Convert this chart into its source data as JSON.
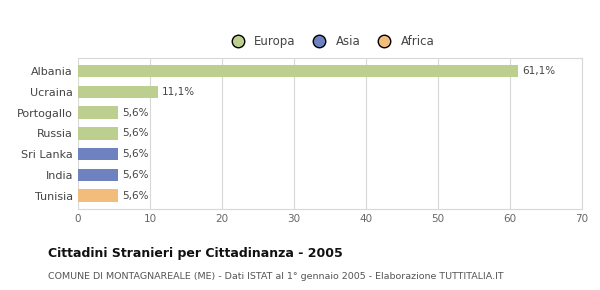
{
  "categories": [
    "Albania",
    "Ucraina",
    "Portogallo",
    "Russia",
    "Sri Lanka",
    "India",
    "Tunisia"
  ],
  "values": [
    61.1,
    11.1,
    5.6,
    5.6,
    5.6,
    5.6,
    5.6
  ],
  "labels": [
    "61,1%",
    "11,1%",
    "5,6%",
    "5,6%",
    "5,6%",
    "5,6%",
    "5,6%"
  ],
  "colors": [
    "#bccf8e",
    "#bccf8e",
    "#bccf8e",
    "#bccf8e",
    "#6e82c0",
    "#6e82c0",
    "#f2bc7a"
  ],
  "legend": [
    {
      "label": "Europa",
      "color": "#bccf8e"
    },
    {
      "label": "Asia",
      "color": "#6e82c0"
    },
    {
      "label": "Africa",
      "color": "#f2bc7a"
    }
  ],
  "xlim": [
    0,
    70
  ],
  "xticks": [
    0,
    10,
    20,
    30,
    40,
    50,
    60,
    70
  ],
  "title_bold": "Cittadini Stranieri per Cittadinanza - 2005",
  "subtitle": "COMUNE DI MONTAGNAREALE (ME) - Dati ISTAT al 1° gennaio 2005 - Elaborazione TUTTITALIA.IT",
  "bg_color": "#ffffff",
  "grid_color": "#d8d8d8",
  "bar_height": 0.6
}
